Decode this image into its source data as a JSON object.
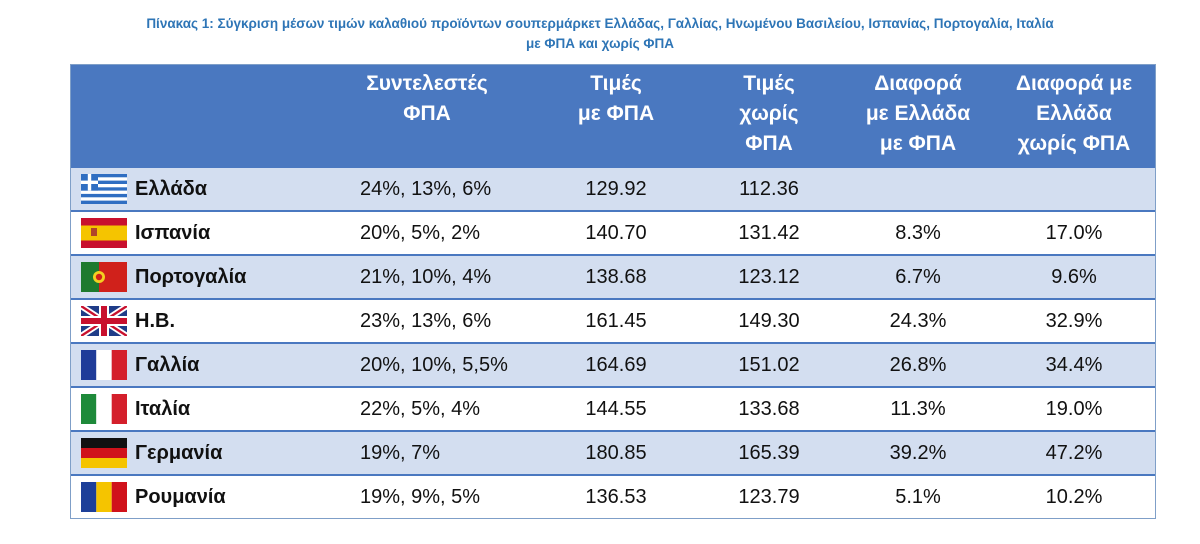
{
  "caption": {
    "line1": "Πίνακας 1: Σύγκριση μέσων τιμών καλαθιού προϊόντων σουπερμάρκετ Ελλάδας, Γαλλίας, Ηνωμένου Βασιλείου, Ισπανίας, Πορτογαλία, Ιταλία",
    "line2": "με ΦΠΑ και χωρίς ΦΠΑ"
  },
  "headers": {
    "vat": [
      "Συντελεστές",
      "ΦΠΑ"
    ],
    "with_vat": [
      "Τιμές",
      "με ΦΠΑ"
    ],
    "without_vat": [
      "Τιμές",
      "χωρίς",
      "ΦΠΑ"
    ],
    "diff_with": [
      "Διαφορά",
      "με Ελλάδα",
      "με ΦΠΑ"
    ],
    "diff_without": [
      "Διαφορά με",
      "Ελλάδα",
      "χωρίς ΦΠΑ"
    ]
  },
  "rows": [
    {
      "country": "Ελλάδα",
      "flag": "greece-flag-icon",
      "vat": "24%, 13%, 6%",
      "with_vat": "129.92",
      "without_vat": "112.36",
      "diff_with": "",
      "diff_without": ""
    },
    {
      "country": "Ισπανία",
      "flag": "spain-flag-icon",
      "vat": "20%, 5%, 2%",
      "with_vat": "140.70",
      "without_vat": "131.42",
      "diff_with": "8.3%",
      "diff_without": "17.0%"
    },
    {
      "country": "Πορτογαλία",
      "flag": "portugal-flag-icon",
      "vat": "21%, 10%, 4%",
      "with_vat": "138.68",
      "without_vat": "123.12",
      "diff_with": "6.7%",
      "diff_without": "9.6%"
    },
    {
      "country": "Η.Β.",
      "flag": "uk-flag-icon",
      "vat": "23%, 13%, 6%",
      "with_vat": "161.45",
      "without_vat": "149.30",
      "diff_with": "24.3%",
      "diff_without": "32.9%"
    },
    {
      "country": "Γαλλία",
      "flag": "france-flag-icon",
      "vat": "20%, 10%, 5,5%",
      "with_vat": "164.69",
      "without_vat": "151.02",
      "diff_with": "26.8%",
      "diff_without": "34.4%"
    },
    {
      "country": "Ιταλία",
      "flag": "italy-flag-icon",
      "vat": "22%, 5%, 4%",
      "with_vat": "144.55",
      "without_vat": "133.68",
      "diff_with": "11.3%",
      "diff_without": "19.0%"
    },
    {
      "country": "Γερμανία",
      "flag": "germany-flag-icon",
      "vat": "19%, 7%",
      "with_vat": "180.85",
      "without_vat": "165.39",
      "diff_with": "39.2%",
      "diff_without": "47.2%"
    },
    {
      "country": "Ρουμανία",
      "flag": "romania-flag-icon",
      "vat": "19%, 9%, 5%",
      "with_vat": "136.53",
      "without_vat": "123.79",
      "diff_with": "5.1%",
      "diff_without": "10.2%"
    }
  ],
  "colors": {
    "caption": "#2e75b6",
    "header_bg": "#4a78c0",
    "row_alt_bg": "#d3def0"
  }
}
